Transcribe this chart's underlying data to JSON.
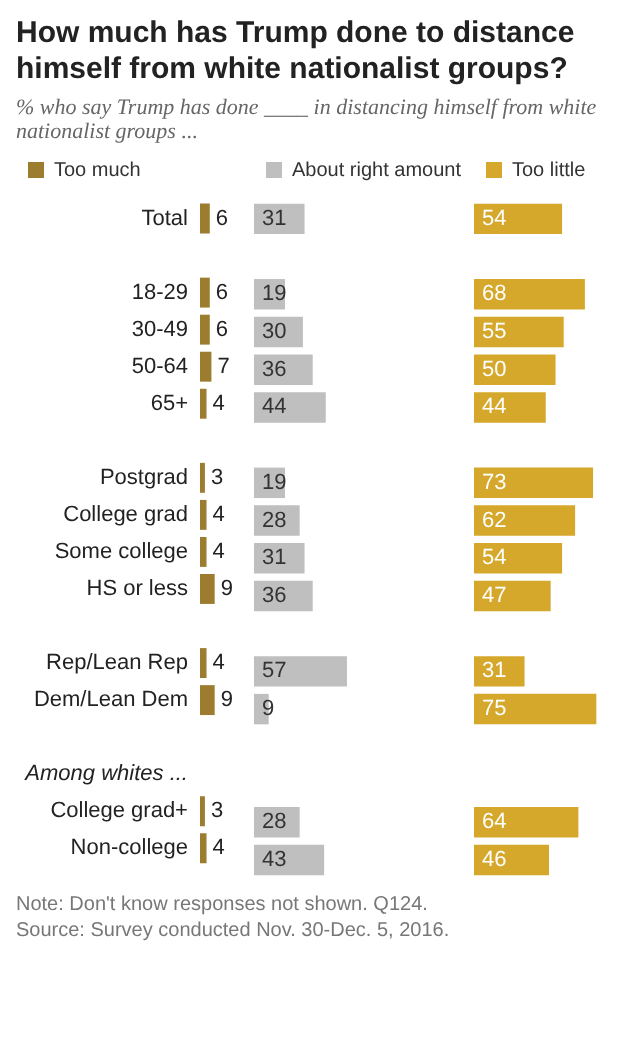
{
  "chart_data": [
    {
      "type": "bar",
      "orientation": "horizontal",
      "title": "How much has Trump done to distance himself from white nationalist groups?",
      "subtitle": "% who say Trump has done ____ in distancing himself from white nationalist groups ...",
      "categories": [
        "Total",
        null,
        "18-29",
        "30-49",
        "50-64",
        "65+",
        null,
        "Postgrad",
        "College grad",
        "Some college",
        "HS or less",
        null,
        "Rep/Lean Rep",
        "Dem/Lean Dem",
        null,
        "Among whites ...",
        "College grad+",
        "Non-college"
      ],
      "tick_labels": "y",
      "series": [
        {
          "name": "Too much",
          "color": "#9c7c2e",
          "values": [
            6,
            null,
            6,
            6,
            7,
            4,
            null,
            3,
            4,
            4,
            9,
            null,
            4,
            9,
            null,
            null,
            3,
            4
          ]
        }
      ],
      "data_labels": true,
      "legend": "top",
      "annotations": [
        "Note: Don't know responses not shown. Q124.",
        "Source: Survey conducted Nov. 30-Dec. 5, 2016."
      ]
    },
    {
      "type": "bar",
      "orientation": "horizontal",
      "categories": [
        null,
        null,
        null,
        null,
        null,
        null,
        null,
        null,
        null,
        null,
        null,
        null,
        null,
        null,
        null,
        null,
        null,
        null
      ],
      "tick_labels": false,
      "series": [
        {
          "name": "About right amount",
          "color": "#bfbfbf",
          "values": [
            31,
            null,
            19,
            30,
            36,
            44,
            null,
            19,
            28,
            31,
            36,
            null,
            57,
            9,
            null,
            null,
            28,
            43
          ]
        }
      ],
      "data_labels": true,
      "legend": "top"
    },
    {
      "type": "bar",
      "orientation": "horizontal",
      "categories": [
        null,
        null,
        null,
        null,
        null,
        null,
        null,
        null,
        null,
        null,
        null,
        null,
        null,
        null,
        null,
        null,
        null,
        null
      ],
      "tick_labels": false,
      "series": [
        {
          "name": "Too little",
          "color": "#d5a82b",
          "values": [
            54,
            null,
            68,
            55,
            50,
            44,
            null,
            73,
            62,
            54,
            47,
            null,
            31,
            75,
            null,
            null,
            64,
            46
          ]
        }
      ],
      "data_labels": true,
      "legend": "top"
    }
  ]
}
